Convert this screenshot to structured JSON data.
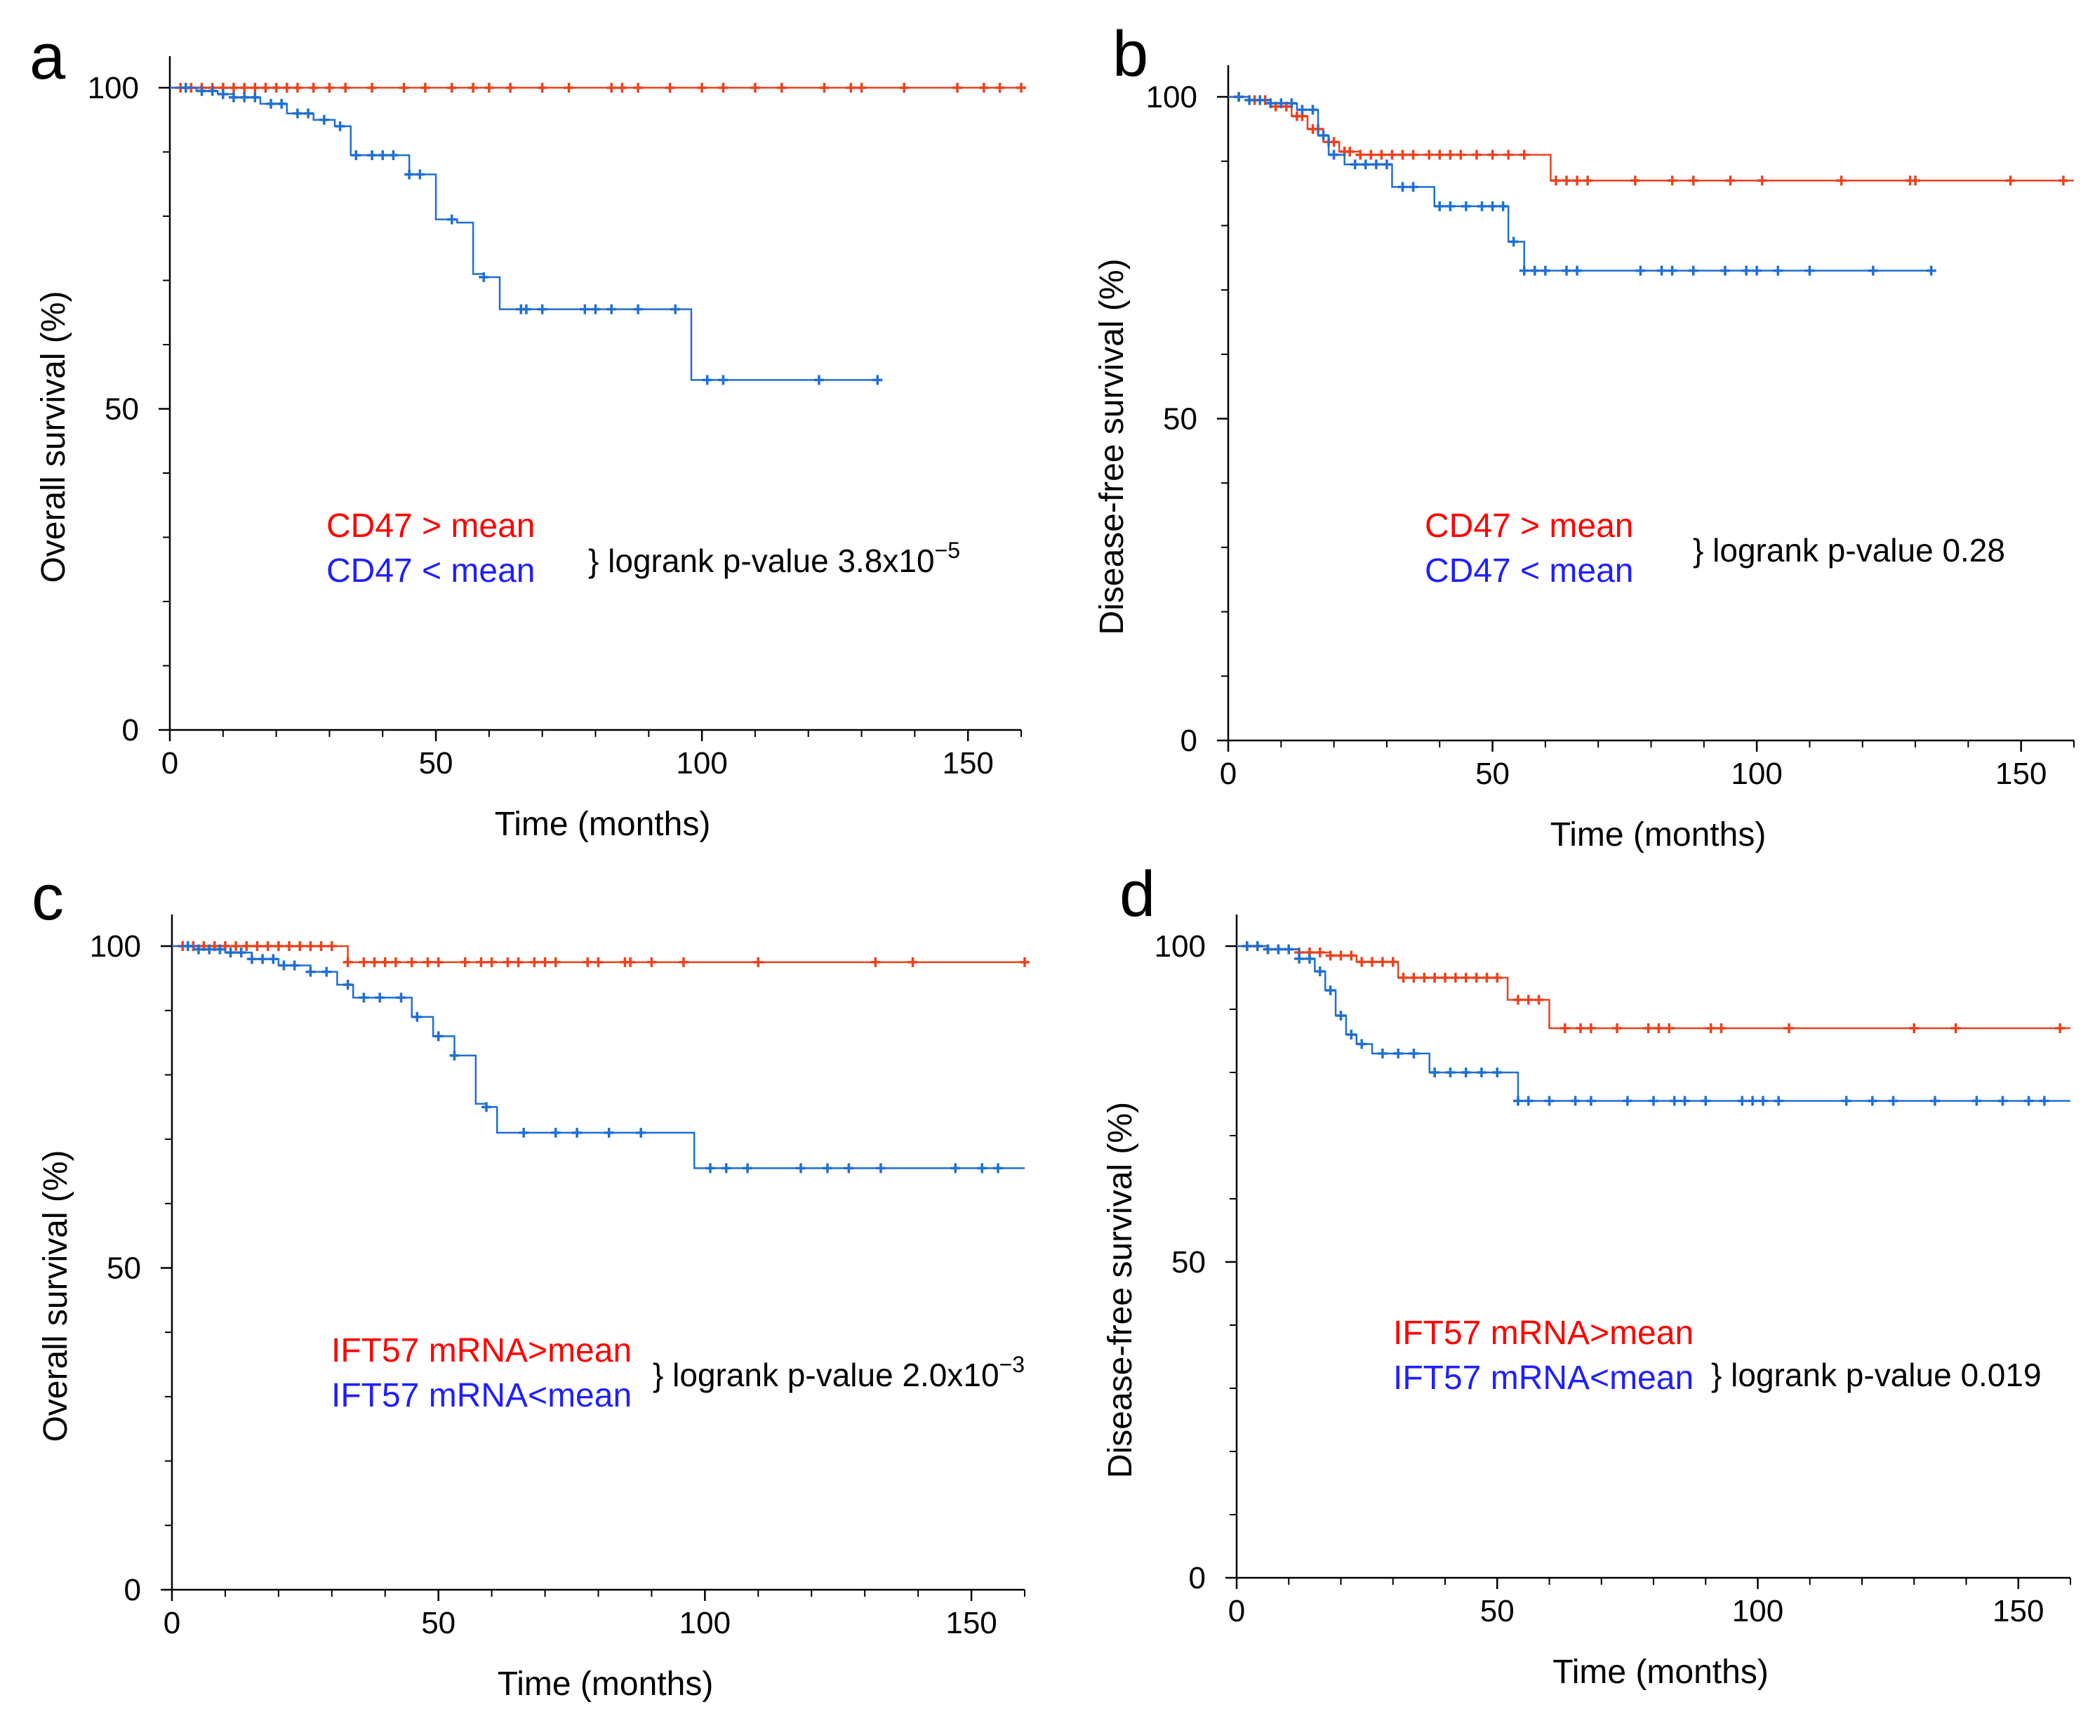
{
  "colors": {
    "high": "#e8431f",
    "low": "#1f6fd1",
    "axis": "#000000",
    "legend_high": "#ff0000",
    "legend_low": "#1f1fff"
  },
  "chart_data": [
    {
      "id": "a",
      "letter": "a",
      "type": "line",
      "title": "",
      "xlabel": "Time (months)",
      "ylabel": "Overall survival (%)",
      "xlim": [
        0,
        160
      ],
      "ylim": [
        0,
        100
      ],
      "xticks": [
        0,
        50,
        100,
        150
      ],
      "yticks": [
        0,
        50,
        100
      ],
      "legend": [
        "CD47 > mean",
        "CD47 < mean"
      ],
      "logrank": {
        "prefix": "} logrank p-value 3.8x10",
        "exp": "−5"
      },
      "series": [
        {
          "name": "CD47 > mean",
          "color_key": "high",
          "x": [
            0,
            160
          ],
          "y": [
            100,
            100
          ],
          "censors": [
            2,
            4,
            6,
            8,
            10,
            12,
            14,
            16,
            18,
            20,
            22,
            24,
            27,
            30,
            33,
            38,
            44,
            48,
            53,
            57,
            60,
            64,
            70,
            75,
            83,
            85,
            88,
            94,
            100,
            104,
            110,
            115,
            123,
            128,
            130,
            138,
            148,
            153,
            156,
            160
          ]
        },
        {
          "name": "CD47 < mean",
          "color_key": "low",
          "x": [
            0,
            5,
            9,
            12,
            17,
            22,
            27,
            31,
            34,
            45,
            50,
            54,
            57,
            59,
            62,
            98,
            133
          ],
          "y": [
            100,
            99.5,
            99,
            98.5,
            97.5,
            96,
            95,
            94,
            89.5,
            86.5,
            79.5,
            79,
            71,
            70.5,
            65.5,
            54.5,
            54.5
          ],
          "censors": [
            3,
            6,
            8,
            10,
            12,
            14,
            16,
            19,
            21,
            24,
            26,
            29,
            32,
            35,
            38,
            40,
            42,
            45,
            47,
            53,
            59,
            66,
            67,
            70,
            78,
            80,
            83,
            88,
            95,
            101,
            104,
            122,
            133
          ]
        }
      ]
    },
    {
      "id": "b",
      "letter": "b",
      "type": "line",
      "title": "",
      "xlabel": "Time (months)",
      "ylabel": "Disease-free survival (%)",
      "xlim": [
        0,
        160
      ],
      "ylim": [
        0,
        100
      ],
      "xticks": [
        0,
        50,
        100,
        150
      ],
      "yticks": [
        0,
        50,
        100
      ],
      "legend": [
        "CD47 > mean",
        "CD47 < mean"
      ],
      "logrank": {
        "prefix": "} logrank p-value 0.28",
        "exp": ""
      },
      "series": [
        {
          "name": "CD47 > mean",
          "color_key": "high",
          "x": [
            0,
            4,
            8,
            12,
            15,
            18,
            21,
            25,
            61,
            160
          ],
          "y": [
            100,
            99.5,
            98.5,
            97,
            95,
            93,
            91.5,
            91,
            87,
            87
          ],
          "censors": [
            2,
            5,
            7,
            9,
            11,
            13,
            14,
            16,
            17,
            19,
            20,
            22,
            23,
            25,
            27,
            29,
            31,
            33,
            35,
            38,
            40,
            42,
            44,
            47,
            50,
            53,
            56,
            62,
            64,
            66,
            68,
            77,
            84,
            88,
            95,
            101,
            116,
            129,
            130,
            148,
            158
          ]
        },
        {
          "name": "CD47 < mean",
          "color_key": "low",
          "x": [
            0,
            4,
            8,
            13,
            17,
            19,
            22,
            31,
            39,
            53,
            56,
            133
          ],
          "y": [
            100,
            99.5,
            99,
            98,
            94,
            91,
            89.5,
            86,
            83,
            77.5,
            73,
            73
          ],
          "censors": [
            2,
            4,
            6,
            8,
            10,
            12,
            14,
            16,
            18,
            20,
            24,
            26,
            28,
            30,
            33,
            35,
            40,
            42,
            45,
            48,
            50,
            52,
            54,
            56,
            58,
            60,
            64,
            66,
            78,
            82,
            84,
            88,
            94,
            98,
            100,
            104,
            110,
            122,
            133
          ]
        }
      ]
    },
    {
      "id": "c",
      "letter": "c",
      "type": "line",
      "title": "",
      "xlabel": "Time (months)",
      "ylabel": "Overall survival (%)",
      "xlim": [
        0,
        160
      ],
      "ylim": [
        0,
        100
      ],
      "xticks": [
        0,
        50,
        100,
        150
      ],
      "yticks": [
        0,
        50,
        100
      ],
      "legend": [
        "IFT57 mRNA>mean",
        "IFT57 mRNA<mean"
      ],
      "logrank": {
        "prefix": "} logrank p-value 2.0x10",
        "exp": "−3"
      },
      "series": [
        {
          "name": "IFT57 mRNA>mean",
          "color_key": "high",
          "x": [
            0,
            33,
            160
          ],
          "y": [
            100,
            97.5,
            97.5
          ],
          "censors": [
            2,
            4,
            6,
            8,
            10,
            12,
            14,
            16,
            18,
            20,
            22,
            24,
            26,
            28,
            30,
            33,
            36,
            38,
            40,
            42,
            45,
            48,
            50,
            55,
            58,
            60,
            63,
            65,
            68,
            70,
            72,
            78,
            80,
            85,
            86,
            90,
            96,
            110,
            132,
            139,
            160
          ]
        },
        {
          "name": "IFT57 mRNA<mean",
          "color_key": "low",
          "x": [
            0,
            5,
            10,
            15,
            20,
            26,
            31,
            34,
            45,
            49,
            53,
            57,
            59,
            61,
            98,
            160
          ],
          "y": [
            100,
            99.5,
            99,
            98,
            97,
            96,
            94,
            92,
            89,
            86,
            83,
            75.5,
            75,
            71,
            65.5,
            65.5
          ],
          "censors": [
            3,
            5,
            7,
            9,
            11,
            13,
            15,
            17,
            19,
            21,
            23,
            26,
            29,
            33,
            36,
            39,
            43,
            46,
            50,
            53,
            59,
            66,
            72,
            76,
            82,
            88,
            101,
            104,
            108,
            118,
            123,
            127,
            133,
            147,
            152,
            155
          ]
        }
      ]
    },
    {
      "id": "d",
      "letter": "d",
      "type": "line",
      "title": "",
      "xlabel": "Time (months)",
      "ylabel": "Disease-free survival (%)",
      "xlim": [
        0,
        160
      ],
      "ylim": [
        0,
        100
      ],
      "xticks": [
        0,
        50,
        100,
        150
      ],
      "yticks": [
        0,
        50,
        100
      ],
      "legend": [
        "IFT57 mRNA>mean",
        "IFT57 mRNA<mean"
      ],
      "logrank": {
        "prefix": "} logrank p-value 0.019",
        "exp": ""
      },
      "series": [
        {
          "name": "IFT57 mRNA>mean",
          "color_key": "high",
          "x": [
            0,
            6,
            12,
            18,
            23,
            31,
            52,
            60,
            160
          ],
          "y": [
            100,
            99.5,
            99,
            98.5,
            97.5,
            95,
            91.5,
            87,
            87
          ],
          "censors": [
            2,
            4,
            6,
            8,
            10,
            12,
            14,
            16,
            18,
            20,
            22,
            24,
            26,
            28,
            30,
            32,
            34,
            36,
            38,
            40,
            42,
            44,
            46,
            48,
            50,
            54,
            56,
            58,
            63,
            66,
            68,
            73,
            79,
            81,
            83,
            91,
            93,
            106,
            130,
            138,
            158
          ]
        },
        {
          "name": "IFT57 mRNA<mean",
          "color_key": "low",
          "x": [
            0,
            6,
            12,
            15,
            17,
            19,
            21,
            23,
            26,
            37,
            54,
            160
          ],
          "y": [
            100,
            99.5,
            98,
            96,
            93,
            89,
            86,
            84.5,
            83,
            80,
            75.5,
            75.5
          ],
          "censors": [
            2,
            4,
            6,
            8,
            10,
            12,
            14,
            16,
            18,
            20,
            22,
            24,
            28,
            31,
            34,
            38,
            41,
            44,
            47,
            50,
            54,
            56,
            60,
            65,
            68,
            75,
            80,
            84,
            86,
            90,
            97,
            99,
            101,
            104,
            117,
            122,
            126,
            134,
            142,
            147,
            152,
            155
          ]
        }
      ]
    }
  ]
}
